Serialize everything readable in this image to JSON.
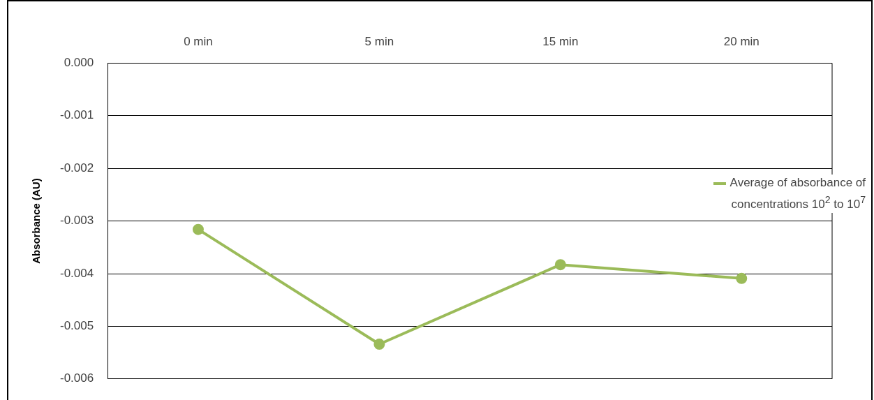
{
  "chart_data": {
    "type": "line",
    "ylabel": "Absorbance (AU)",
    "categories": [
      "0 min",
      "5 min",
      "15 min",
      "20 min"
    ],
    "series": [
      {
        "name": "Average of absorbance of concentrations 10$^{2}$ to 10$^{7}$",
        "color": "#9bbb59",
        "values": [
          -0.00316,
          -0.00534,
          -0.00383,
          -0.00409
        ]
      }
    ],
    "ylim": [
      -0.006,
      0
    ],
    "yticks": [
      {
        "value": 0,
        "label": "0.000"
      },
      {
        "value": -0.001,
        "label": "-0.001"
      },
      {
        "value": -0.002,
        "label": "-0.002"
      },
      {
        "value": -0.003,
        "label": "-0.003"
      },
      {
        "value": -0.004,
        "label": "-0.004"
      },
      {
        "value": -0.005,
        "label": "-0.005"
      },
      {
        "value": -0.006,
        "label": "-0.006"
      }
    ],
    "grid": "y",
    "legend": "right",
    "marker": "circle",
    "line_style": "solid"
  }
}
